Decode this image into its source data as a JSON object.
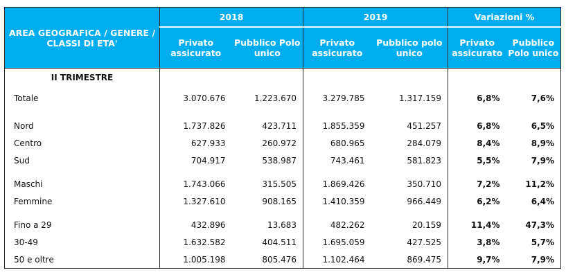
{
  "header": {
    "area_label": "AREA GEOGRAFICA / GENERE / CLASSI DI ETA'",
    "groups": [
      {
        "label": "2018"
      },
      {
        "label": "2019"
      },
      {
        "label": "Variazioni %"
      }
    ],
    "sub_labels": [
      "Privato assicurato",
      "Pubblico Polo unico",
      "Privato assicurato",
      "Pubblico polo unico",
      "Privato assicurato",
      "Pubblico Polo unico"
    ]
  },
  "section_title": "II TRIMESTRE",
  "rows": [
    {
      "label": "Totale",
      "v": [
        "3.070.676",
        "1.223.670",
        "3.279.785",
        "1.317.159",
        "6,8%",
        "7,6%"
      ]
    },
    {
      "label": "Nord",
      "v": [
        "1.737.826",
        "423.711",
        "1.855.359",
        "451.257",
        "6,8%",
        "6,5%"
      ]
    },
    {
      "label": "Centro",
      "v": [
        "627.933",
        "260.972",
        "680.965",
        "284.079",
        "8,4%",
        "8,9%"
      ]
    },
    {
      "label": "Sud",
      "v": [
        "704.917",
        "538.987",
        "743.461",
        "581.823",
        "5,5%",
        "7,9%"
      ]
    },
    {
      "label": "Maschi",
      "v": [
        "1.743.066",
        "315.505",
        "1.869.426",
        "350.710",
        "7,2%",
        "11,2%"
      ]
    },
    {
      "label": "Femmine",
      "v": [
        "1.327.610",
        "908.165",
        "1.410.359",
        "966.449",
        "6,2%",
        "6,4%"
      ]
    },
    {
      "label": "Fino a 29",
      "v": [
        "432.896",
        "13.683",
        "482.262",
        "20.159",
        "11,4%",
        "47,3%"
      ]
    },
    {
      "label": "30-49",
      "v": [
        "1.632.582",
        "404.511",
        "1.695.059",
        "427.525",
        "3,8%",
        "5,7%"
      ]
    },
    {
      "label": "50 e oltre",
      "v": [
        "1.005.198",
        "805.476",
        "1.102.464",
        "869.475",
        "9,7%",
        "7,9%"
      ]
    }
  ]
}
